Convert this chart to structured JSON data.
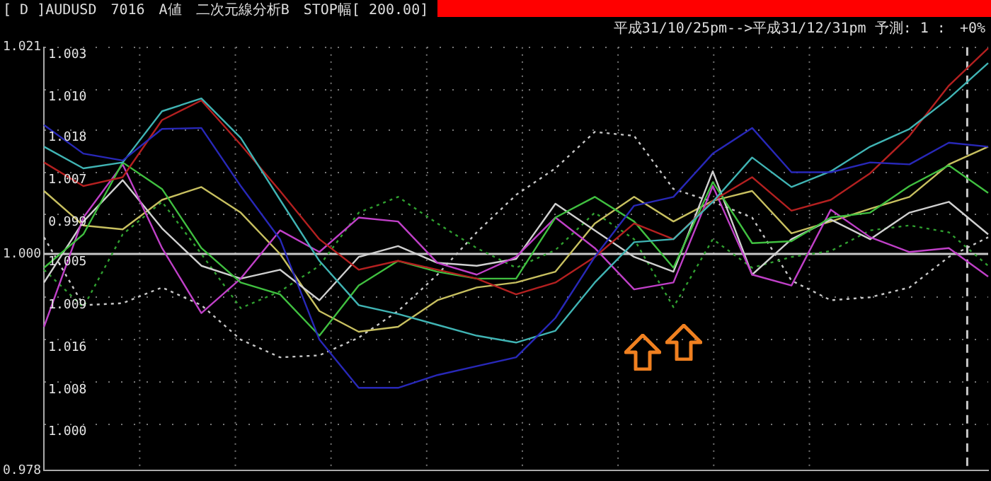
{
  "chart_data": {
    "type": "line",
    "title": "[ D ]AUDUSD　7016　A値　二次元線分析B　STOP幅[ 200.00]",
    "subtitle": "平成31/10/25pm-->平成31/12/31pm 予測: 1 :　+0%",
    "annotations": [
      "1.003",
      "1.010",
      "1.018",
      "1.007",
      "0.999",
      "1.005",
      "1.009",
      "1.016",
      "1.008",
      "1.000"
    ],
    "categories": [
      null,
      null,
      null,
      null,
      null,
      null,
      null,
      null,
      null,
      null,
      null,
      null,
      null,
      null,
      null,
      null,
      null,
      null,
      null,
      null,
      null,
      null,
      null,
      null,
      null
    ],
    "series": [
      {
        "color": "#2828b8",
        "values": [
          1.0131,
          1.0102,
          1.0095,
          1.0127,
          1.0128,
          1.0069,
          1.0015,
          0.9913,
          0.9864,
          0.9864,
          0.9877,
          0.9886,
          0.9895,
          0.9935,
          0.9997,
          1.0049,
          1.0058,
          1.0102,
          1.0128,
          1.0083,
          1.0083,
          1.0093,
          1.0091,
          1.0113,
          1.0109
        ]
      },
      {
        "color": "#40b4b4",
        "values": [
          1.0109,
          1.0087,
          1.0093,
          1.0145,
          1.0158,
          1.0118,
          1.0055,
          0.9993,
          0.9948,
          0.9939,
          0.9928,
          0.9917,
          0.991,
          0.9922,
          0.9971,
          1.0012,
          1.0015,
          1.0053,
          1.0098,
          1.0068,
          1.0084,
          1.0109,
          1.0127,
          1.0158,
          1.0194
        ]
      },
      {
        "color": "#b42020",
        "values": [
          1.0093,
          1.0069,
          1.0078,
          1.0136,
          1.0156,
          1.0111,
          1.0064,
          1.0015,
          0.9984,
          0.9993,
          0.9984,
          0.9975,
          0.9959,
          0.9971,
          0.9997,
          1.0031,
          1.0015,
          1.0054,
          1.0078,
          1.0044,
          1.0055,
          1.0082,
          1.012,
          1.0171,
          1.0209
        ]
      },
      {
        "color": "#40c040",
        "values": [
          0.9986,
          1.002,
          1.0093,
          1.0066,
          1.0006,
          0.9971,
          0.9959,
          0.9917,
          0.9968,
          0.9993,
          0.9982,
          0.9975,
          0.9975,
          1.0037,
          1.0058,
          1.0033,
          0.9986,
          1.0073,
          1.0011,
          1.0013,
          1.0037,
          1.0042,
          1.0069,
          1.009,
          1.0062
        ]
      },
      {
        "color": "#c040c8",
        "values": [
          0.9926,
          1.0037,
          1.0091,
          1.0006,
          0.994,
          0.9975,
          1.0024,
          1.0002,
          1.0037,
          1.0033,
          0.9991,
          0.9979,
          0.9997,
          1.0037,
          1.0006,
          0.9964,
          0.9971,
          1.0069,
          0.9979,
          0.9968,
          1.0045,
          1.0017,
          1.0002,
          1.0006,
          0.9977
        ]
      },
      {
        "color": "#d0d0d0",
        "values": [
          0.9971,
          1.0033,
          1.0075,
          1.0026,
          0.9988,
          0.9975,
          0.9984,
          0.9953,
          0.9997,
          1.0008,
          0.9991,
          0.9988,
          0.9995,
          1.0051,
          1.0024,
          0.9997,
          0.9982,
          1.0084,
          0.9979,
          1.0015,
          1.0035,
          1.0015,
          1.0042,
          1.0053,
          1.002
        ]
      },
      {
        "color": "#c8c060",
        "values": [
          1.0064,
          1.0029,
          1.0025,
          1.0055,
          1.0068,
          1.0042,
          1.0,
          0.9942,
          0.9921,
          0.9926,
          0.9953,
          0.9966,
          0.9971,
          0.9982,
          1.0031,
          1.0058,
          1.0033,
          1.0054,
          1.0064,
          1.0021,
          1.0033,
          1.0046,
          1.0058,
          1.0091,
          1.0109
        ]
      },
      {
        "color": "#30a030",
        "line_style": "dotted",
        "values": [
          0.9984,
          0.9946,
          1.002,
          1.0053,
          1.0,
          0.9945,
          0.9962,
          0.9988,
          1.0042,
          1.0058,
          1.0031,
          1.0006,
          0.9986,
          1.0004,
          1.0042,
          1.0015,
          0.9946,
          1.0015,
          0.9986,
          0.9997,
          1.0003,
          1.0024,
          1.0029,
          1.0022,
          0.9988
        ]
      },
      {
        "color": "#c8c8c8",
        "line_style": "dotted",
        "values": [
          1.0017,
          0.9948,
          0.995,
          0.9966,
          0.9948,
          0.9913,
          0.9895,
          0.9897,
          0.9915,
          0.9942,
          0.9979,
          1.0022,
          1.006,
          1.0087,
          1.0124,
          1.012,
          1.0066,
          1.0053,
          1.0037,
          0.9973,
          0.9953,
          0.9956,
          0.9966,
          0.9997,
          1.0017
        ]
      }
    ],
    "ylim": [
      0.978,
      1.021
    ],
    "yticks": [
      1.021,
      {
        "value": 1.0167,
        "label": null
      },
      {
        "value": 1.0126,
        "label": null
      },
      {
        "value": 1.0083,
        "label": null
      },
      {
        "value": 1.004,
        "label": null
      },
      {
        "value": 1,
        "label": "1.000"
      },
      {
        "value": 0.9956,
        "label": null
      },
      {
        "value": 0.9913,
        "label": null
      },
      {
        "value": 0.987,
        "label": null
      },
      {
        "value": 0.9827,
        "label": null
      },
      0.978
    ],
    "tick_labels": "y",
    "grid": true,
    "legend": false,
    "marker": "none",
    "line_style": "solid",
    "ref_lines": [
      {
        "axis": "y",
        "value": 1,
        "color": "#c8c8c8",
        "line_style": "solid"
      }
    ]
  }
}
